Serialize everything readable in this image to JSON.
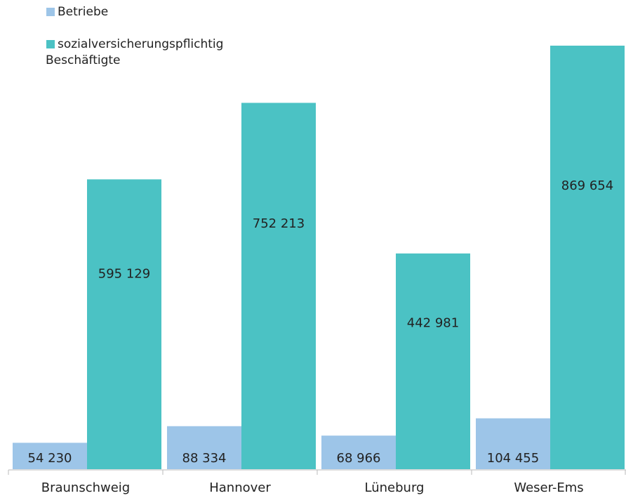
{
  "chart_data": {
    "type": "bar",
    "title": "",
    "xlabel": "",
    "ylabel": "",
    "categories": [
      "Braunschweig",
      "Hannover",
      "Lüneburg",
      "Weser-Ems"
    ],
    "series": [
      {
        "name": "Betriebe",
        "values": [
          54230,
          88334,
          68966,
          104455
        ],
        "labels": [
          "54 230",
          "88 334",
          "68 966",
          "104 455"
        ]
      },
      {
        "name": "sozialversicherungspflichtig Beschäftigte",
        "values": [
          595129,
          752213,
          442981,
          869654
        ],
        "labels": [
          "595 129",
          "752 213",
          "442 981",
          "869 654"
        ]
      }
    ],
    "legend": {
      "position": "top-left",
      "items": [
        {
          "lines": [
            "Betriebe"
          ],
          "color": "#9dc5e8"
        },
        {
          "lines": [
            "sozialversicherungspflichtig",
            "Beschäftigte"
          ],
          "color": "#4bc2c4"
        }
      ]
    },
    "colors": {
      "betriebe": "#9dc5e8",
      "beschaeftigte": "#4bc2c4",
      "axis": "#bbbbbb",
      "text": "#222222"
    },
    "ylim": [
      0,
      869654
    ],
    "grid": false
  }
}
